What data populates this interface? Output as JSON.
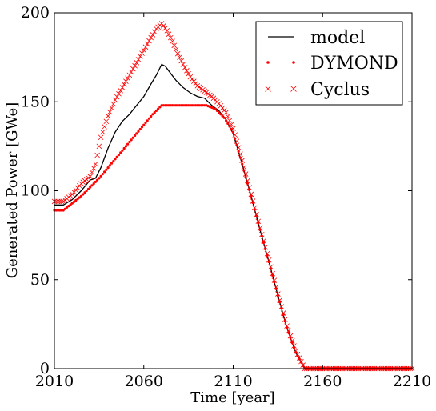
{
  "chart_data": {
    "type": "line",
    "xlabel": "Time [year]",
    "ylabel": "Generated Power [GWe]",
    "xlim": [
      2010,
      2210
    ],
    "ylim": [
      0,
      200
    ],
    "xticks": [
      2010,
      2060,
      2110,
      2160,
      2210
    ],
    "yticks": [
      0,
      50,
      100,
      150,
      200
    ],
    "legend_position": "top-right",
    "grid": false,
    "series": [
      {
        "name": "model",
        "style": "line",
        "color": "#000000",
        "points": [
          [
            2010,
            92
          ],
          [
            2015,
            92
          ],
          [
            2020,
            95
          ],
          [
            2025,
            100
          ],
          [
            2030,
            106
          ],
          [
            2033,
            107
          ],
          [
            2036,
            113
          ],
          [
            2040,
            124
          ],
          [
            2044,
            133
          ],
          [
            2048,
            139
          ],
          [
            2052,
            143
          ],
          [
            2056,
            148
          ],
          [
            2060,
            153
          ],
          [
            2064,
            160
          ],
          [
            2067,
            165
          ],
          [
            2070,
            171
          ],
          [
            2072,
            170
          ],
          [
            2075,
            166
          ],
          [
            2078,
            162
          ],
          [
            2082,
            158
          ],
          [
            2086,
            155
          ],
          [
            2090,
            153
          ],
          [
            2094,
            152
          ],
          [
            2098,
            148
          ],
          [
            2102,
            145
          ],
          [
            2106,
            140
          ],
          [
            2110,
            132
          ],
          [
            2115,
            115
          ],
          [
            2120,
            97
          ],
          [
            2125,
            78
          ],
          [
            2130,
            60
          ],
          [
            2135,
            41
          ],
          [
            2140,
            23
          ],
          [
            2145,
            9
          ],
          [
            2150,
            0
          ],
          [
            2210,
            0
          ]
        ]
      },
      {
        "name": "DYMOND",
        "style": "dots",
        "color": "#ff0000",
        "points": [
          [
            2010,
            89
          ],
          [
            2015,
            89
          ],
          [
            2020,
            93
          ],
          [
            2025,
            97
          ],
          [
            2030,
            102
          ],
          [
            2035,
            107
          ],
          [
            2040,
            113
          ],
          [
            2045,
            119
          ],
          [
            2050,
            125
          ],
          [
            2055,
            131
          ],
          [
            2060,
            137
          ],
          [
            2065,
            143
          ],
          [
            2070,
            148
          ],
          [
            2075,
            148
          ],
          [
            2080,
            148
          ],
          [
            2085,
            148
          ],
          [
            2090,
            148
          ],
          [
            2095,
            148
          ],
          [
            2100,
            146
          ],
          [
            2105,
            141
          ],
          [
            2110,
            133
          ],
          [
            2115,
            115
          ],
          [
            2120,
            97
          ],
          [
            2125,
            78
          ],
          [
            2130,
            60
          ],
          [
            2135,
            41
          ],
          [
            2140,
            23
          ],
          [
            2145,
            9
          ],
          [
            2150,
            0
          ],
          [
            2210,
            0
          ]
        ]
      },
      {
        "name": "Cyclus",
        "style": "x",
        "color": "#ff0000",
        "points": [
          [
            2010,
            94
          ],
          [
            2015,
            94
          ],
          [
            2020,
            98
          ],
          [
            2025,
            104
          ],
          [
            2030,
            108
          ],
          [
            2033,
            115
          ],
          [
            2036,
            130
          ],
          [
            2040,
            142
          ],
          [
            2044,
            151
          ],
          [
            2048,
            158
          ],
          [
            2052,
            165
          ],
          [
            2056,
            172
          ],
          [
            2060,
            179
          ],
          [
            2064,
            186
          ],
          [
            2067,
            191
          ],
          [
            2070,
            194
          ],
          [
            2073,
            190
          ],
          [
            2076,
            184
          ],
          [
            2079,
            177
          ],
          [
            2082,
            171
          ],
          [
            2086,
            164
          ],
          [
            2090,
            159
          ],
          [
            2094,
            156
          ],
          [
            2098,
            153
          ],
          [
            2102,
            149
          ],
          [
            2106,
            144
          ],
          [
            2110,
            135
          ],
          [
            2115,
            117
          ],
          [
            2120,
            98
          ],
          [
            2125,
            79
          ],
          [
            2130,
            61
          ],
          [
            2135,
            42
          ],
          [
            2140,
            24
          ],
          [
            2145,
            10
          ],
          [
            2150,
            0
          ],
          [
            2210,
            0
          ]
        ]
      }
    ]
  }
}
